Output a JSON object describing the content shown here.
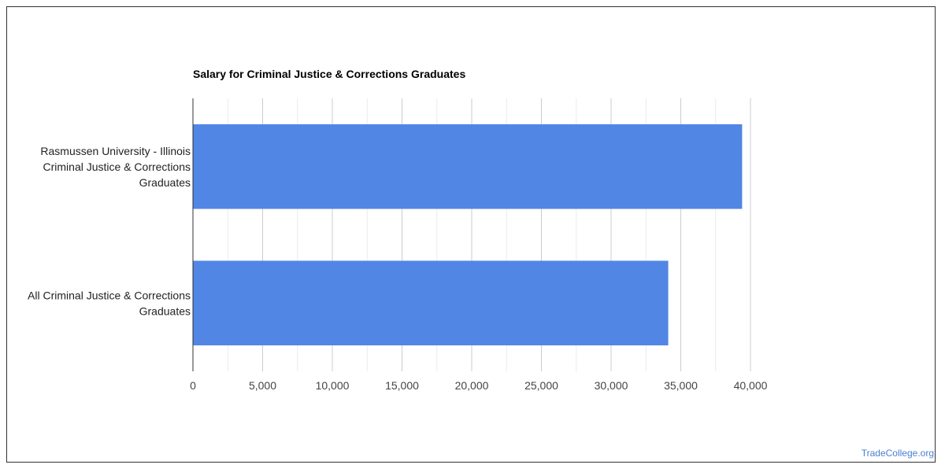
{
  "chart_data": {
    "type": "bar",
    "orientation": "horizontal",
    "title": "Salary for Criminal Justice & Corrections Graduates",
    "categories": [
      [
        "Rasmussen University - Illinois",
        "Criminal Justice & Corrections",
        "Graduates"
      ],
      [
        "All Criminal Justice & Corrections",
        "Graduates"
      ]
    ],
    "values": [
      39400,
      34100
    ],
    "xlim": [
      0,
      40000
    ],
    "ticks": [
      "0",
      "5,000",
      "10,000",
      "15,000",
      "20,000",
      "25,000",
      "30,000",
      "35,000",
      "40,000"
    ],
    "tick_values": [
      0,
      5000,
      10000,
      15000,
      20000,
      25000,
      30000,
      35000,
      40000
    ],
    "grid": "vertical",
    "bar_color": "#5186e4",
    "major_grid_color": "#cccccc",
    "minor_grid_color": "#ebebeb",
    "axis_color": "#333333"
  },
  "watermark": "TradeCollege.org"
}
